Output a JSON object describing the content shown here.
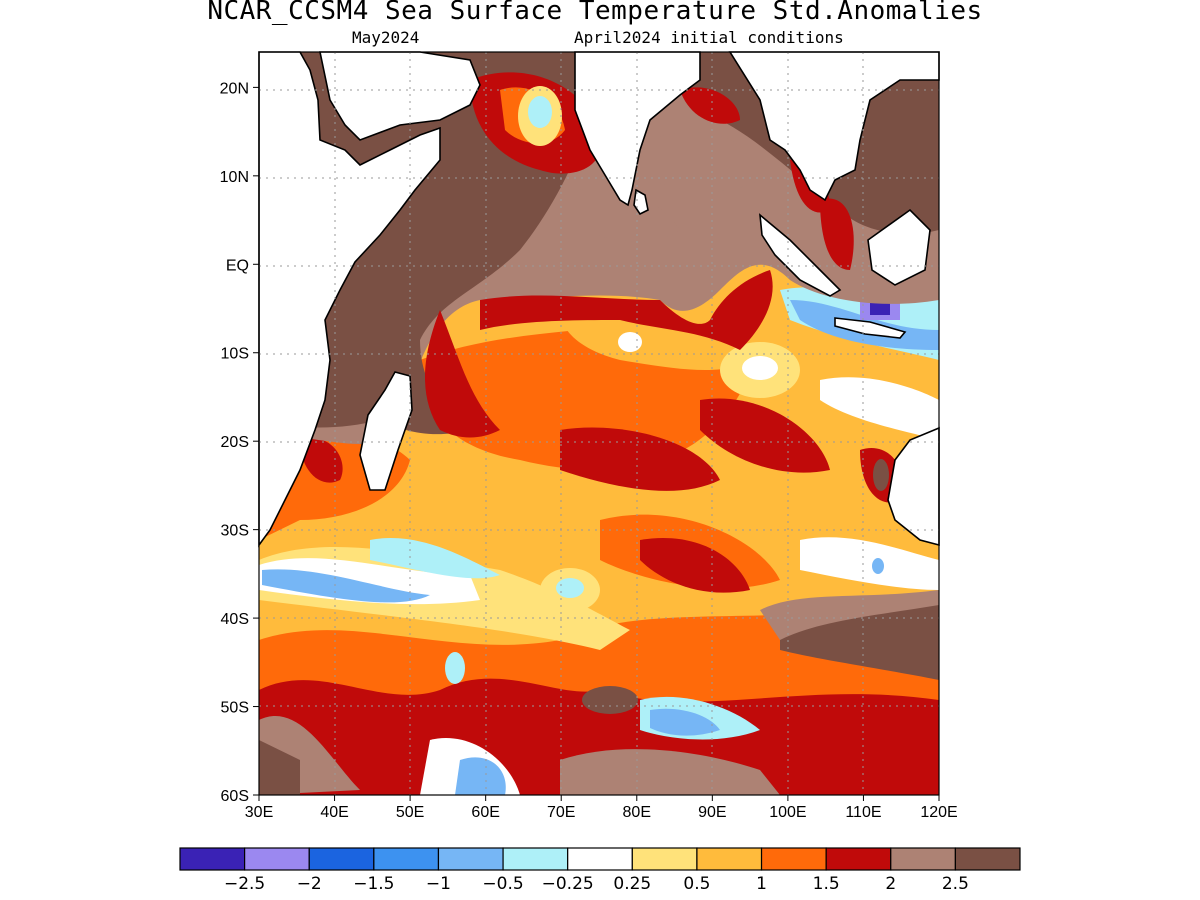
{
  "header": {
    "title": "NCAR_CCSM4 Sea Surface Temperature Std.Anomalies",
    "valid_month": "May2024",
    "init": "April2024 initial conditions"
  },
  "axes": {
    "lat_labels": [
      "20N",
      "10N",
      "EQ",
      "10S",
      "20S",
      "30S",
      "40S",
      "50S",
      "60S"
    ],
    "lon_labels": [
      "30E",
      "40E",
      "50E",
      "60E",
      "70E",
      "80E",
      "90E",
      "100E",
      "110E",
      "120E"
    ],
    "lat_range": [
      -60,
      24
    ],
    "lon_range": [
      30,
      120
    ],
    "grid": true
  },
  "colorbar": {
    "labels": [
      "−2.5",
      "−2",
      "−1.5",
      "−1",
      "−0.5",
      "−0.25",
      "0.25",
      "0.5",
      "1",
      "1.5",
      "2",
      "2.5"
    ],
    "colors": [
      "#3a22b5",
      "#9b88f0",
      "#1b64e0",
      "#3d92f0",
      "#76b6f5",
      "#aef0f8",
      "#ffffff",
      "#ffe27a",
      "#ffbb3c",
      "#ff6a0a",
      "#c00a0a",
      "#ad8274",
      "#7a5044"
    ]
  }
}
